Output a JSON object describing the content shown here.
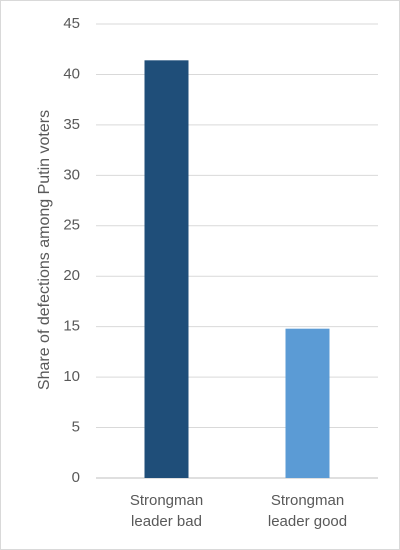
{
  "chart_data": {
    "type": "bar",
    "y_label": "Share of defections among Putin voters",
    "categories": [
      "Strongman leader bad",
      "Strongman leader good"
    ],
    "values": [
      41.4,
      14.8
    ],
    "colors": [
      "#1f4e79",
      "#5b9bd5"
    ],
    "ylim": [
      0,
      45
    ],
    "yticks": [
      0,
      5,
      10,
      15,
      20,
      25,
      30,
      35,
      40,
      45
    ],
    "grid": true
  }
}
